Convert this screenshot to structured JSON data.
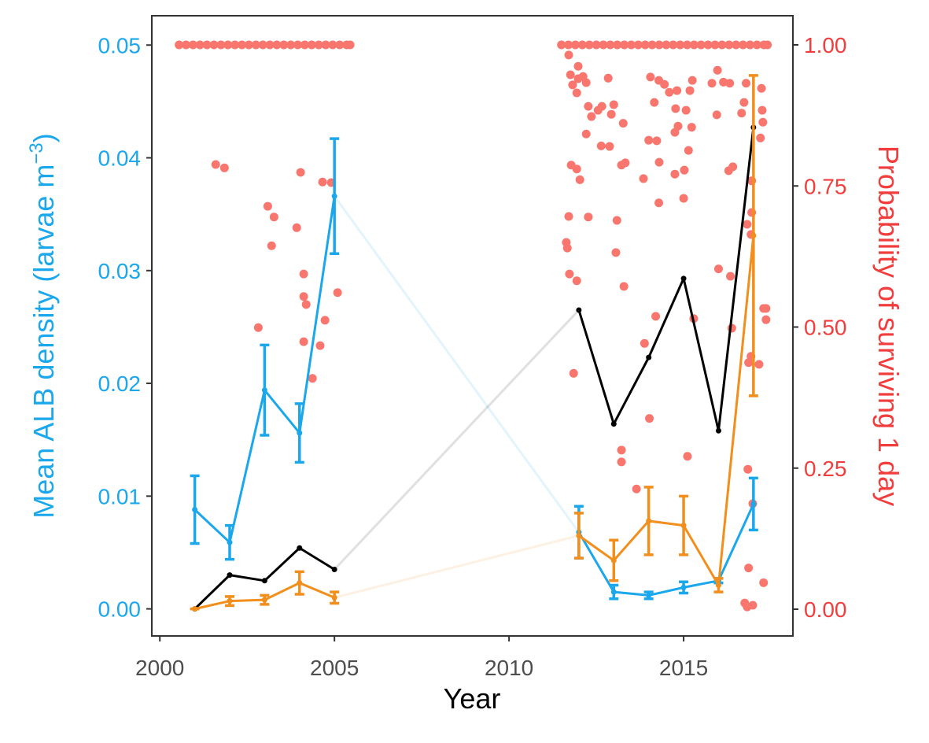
{
  "chart_data": {
    "type": "line",
    "x_label": "Year",
    "y_label_parts": [
      "Mean ALB density (larvae m",
      "−3",
      ")"
    ],
    "y2_label": "Probability of surviving 1 day",
    "y_color": "#1aa7ec",
    "y2_color": "#f23d3d",
    "xlim": [
      1999.77,
      2018.13
    ],
    "xticks": [
      2000,
      2005,
      2010,
      2015
    ],
    "ylim": [
      -0.0024,
      0.0526
    ],
    "yticks": [
      {
        "value": 0,
        "label": "0.00"
      },
      {
        "value": 0.01,
        "label": "0.01"
      },
      {
        "value": 0.02,
        "label": "0.02"
      },
      {
        "value": 0.03,
        "label": "0.03"
      },
      {
        "value": 0.04,
        "label": "0.04"
      },
      {
        "value": 0.05,
        "label": "0.05"
      }
    ],
    "y2lim": [
      -0.0474,
      1.0516
    ],
    "y2ticks": [
      {
        "value": 0,
        "label": "0.00"
      },
      {
        "value": 0.25,
        "label": "0.25"
      },
      {
        "value": 0.5,
        "label": "0.50"
      },
      {
        "value": 0.75,
        "label": "0.75"
      },
      {
        "value": 1,
        "label": "1.00"
      }
    ],
    "x": [
      2001,
      2002,
      2003,
      2004,
      2005,
      2012,
      2013,
      2014,
      2015,
      2016,
      2017
    ],
    "series": [
      {
        "type": "scatter",
        "axis": "y2",
        "color": "#f8766d",
        "x": [
          2000.55,
          2000.75,
          2000.95,
          2001.15,
          2001.35,
          2001.55,
          2001.75,
          2001.95,
          2002.15,
          2002.35,
          2002.55,
          2002.75,
          2002.95,
          2003.15,
          2003.35,
          2003.55,
          2003.75,
          2003.95,
          2004.15,
          2004.35,
          2004.55,
          2004.75,
          2004.95,
          2005.15,
          2005.35,
          2005.45,
          2011.5,
          2011.7,
          2011.9,
          2012.1,
          2012.3,
          2012.5,
          2012.7,
          2012.9,
          2013.1,
          2013.3,
          2013.5,
          2013.7,
          2013.9,
          2014.1,
          2014.3,
          2014.5,
          2014.7,
          2014.9,
          2015.1,
          2015.3,
          2015.5,
          2015.7,
          2015.9,
          2016.1,
          2016.3,
          2016.5,
          2016.7,
          2016.9,
          2017.1,
          2017.3,
          2017.4
        ],
        "values": [
          1,
          1,
          1,
          1,
          1,
          1,
          1,
          1,
          1,
          1,
          1,
          1,
          1,
          1,
          1,
          1,
          1,
          1,
          1,
          1,
          1,
          1,
          1,
          1,
          1,
          1,
          1,
          1,
          1,
          1,
          1,
          1,
          1,
          1,
          1,
          1,
          1,
          1,
          1,
          1,
          1,
          1,
          1,
          1,
          1,
          1,
          1,
          1,
          1,
          1,
          1,
          1,
          1,
          1,
          1,
          1,
          1
        ]
      },
      {
        "type": "scatter",
        "axis": "y2",
        "color": "#f8766d",
        "x": [
          2001.6,
          2001.85,
          2003.09,
          2003.27,
          2003.2,
          2002.82,
          2003.92,
          2004.03,
          2004.12,
          2004.12,
          2004.19,
          2004.12,
          2004.37,
          2004.59,
          2004.73,
          2004.66,
          2004.91,
          2005.09,
          2011.71,
          2011.98,
          2011.76,
          2011.98,
          2011.82,
          2012.12,
          2011.94,
          2012.21,
          2011.78,
          2011.94,
          2012.03,
          2011.71,
          2011.64,
          2011.67,
          2011.73,
          2011.94,
          2011.85,
          2012.27,
          2012.27,
          2012.36,
          2012.55,
          2012.21,
          2012.66,
          2012.84,
          2013.0,
          2012.93,
          2012.64,
          2012.88,
          2013.27,
          2013.33,
          2013.22,
          2013.09,
          2013.06,
          2013.29,
          2013.22,
          2013.22,
          2013.65,
          2013.85,
          2014.05,
          2014.29,
          2014.16,
          2014.0,
          2014.23,
          2014.3,
          2014.29,
          2014.2,
          2013.88,
          2014.02,
          2014.45,
          2014.59,
          2014.81,
          2014.77,
          2014.75,
          2014.84,
          2014.75,
          2015.02,
          2015.14,
          2015.07,
          2015.25,
          2015.18,
          2015.23,
          2015.0,
          2015.11,
          2015.29,
          2015.81,
          2015.97,
          2015.95,
          2016.14,
          2016.32,
          2016.0,
          2016.38,
          2016.29,
          2016.41,
          2016.34,
          2016.73,
          2016.66,
          2016.79,
          2016.82,
          2016.93,
          2016.84,
          2016.86,
          2016.93,
          2016.75,
          2016.82,
          2016.98,
          2016.86,
          2016.98,
          2017.25,
          2017.27,
          2017.2,
          2017.29,
          2017.36,
          2017.36,
          2017.23,
          2017.16,
          2017.29,
          2016.95,
          2016.95
        ],
        "values": [
          0.788,
          0.782,
          0.714,
          0.695,
          0.644,
          0.499,
          0.676,
          0.774,
          0.594,
          0.554,
          0.54,
          0.474,
          0.409,
          0.467,
          0.512,
          0.757,
          0.756,
          0.561,
          0.982,
          0.962,
          0.947,
          0.94,
          0.929,
          0.944,
          0.915,
          0.933,
          0.787,
          0.78,
          0.761,
          0.696,
          0.65,
          0.64,
          0.594,
          0.582,
          0.418,
          0.695,
          0.891,
          0.873,
          0.884,
          0.842,
          0.891,
          0.941,
          0.894,
          0.877,
          0.821,
          0.82,
          0.861,
          0.791,
          0.787,
          0.689,
          0.632,
          0.572,
          0.282,
          0.261,
          0.213,
          0.763,
          0.943,
          0.937,
          0.898,
          0.831,
          0.83,
          0.792,
          0.72,
          0.519,
          0.471,
          0.338,
          0.93,
          0.916,
          0.919,
          0.887,
          0.845,
          0.856,
          0.771,
          0.778,
          0.813,
          0.884,
          0.937,
          0.919,
          0.854,
          0.728,
          0.271,
          0.515,
          0.932,
          0.955,
          0.876,
          0.934,
          0.932,
          0.603,
          0.498,
          0.777,
          0.784,
          0.59,
          0.898,
          0.879,
          0.932,
          0.682,
          0.664,
          0.248,
          0.437,
          0.448,
          0.011,
          0.004,
          0.007,
          0.073,
          0.187,
          0.884,
          0.863,
          0.835,
          0.533,
          0.533,
          0.513,
          0.923,
          0.434,
          0.047,
          0.759,
          0.703
        ]
      },
      {
        "type": "line",
        "color": "#1aa7ec",
        "values": [
          0.0088,
          0.0059,
          0.0194,
          0.0156,
          0.0366,
          0.0068,
          0.0015,
          0.0012,
          0.0019,
          0.0025,
          0.0093
        ],
        "errors": [
          0.003,
          0.0015,
          0.004,
          0.0026,
          0.0051,
          0.0023,
          0.0006,
          0.0003,
          0.0005,
          0.0002,
          0.0023
        ]
      },
      {
        "type": "line",
        "color": "#000000",
        "values": [
          0,
          0.003,
          0.0025,
          0.0054,
          0.0035,
          0.0265,
          0.0164,
          0.0223,
          0.0293,
          0.0158,
          0.0427
        ]
      },
      {
        "type": "line",
        "color": "#f28e1c",
        "values": [
          0,
          0.0007,
          0.0008,
          0.0023,
          0.001,
          0.0065,
          0.0043,
          0.0078,
          0.0074,
          0.0021,
          0.0331
        ],
        "errors": [
          0,
          0.0004,
          0.0004,
          0.001,
          0.0005,
          0.002,
          0.0018,
          0.003,
          0.0026,
          0.0006,
          0.0142
        ]
      }
    ]
  }
}
